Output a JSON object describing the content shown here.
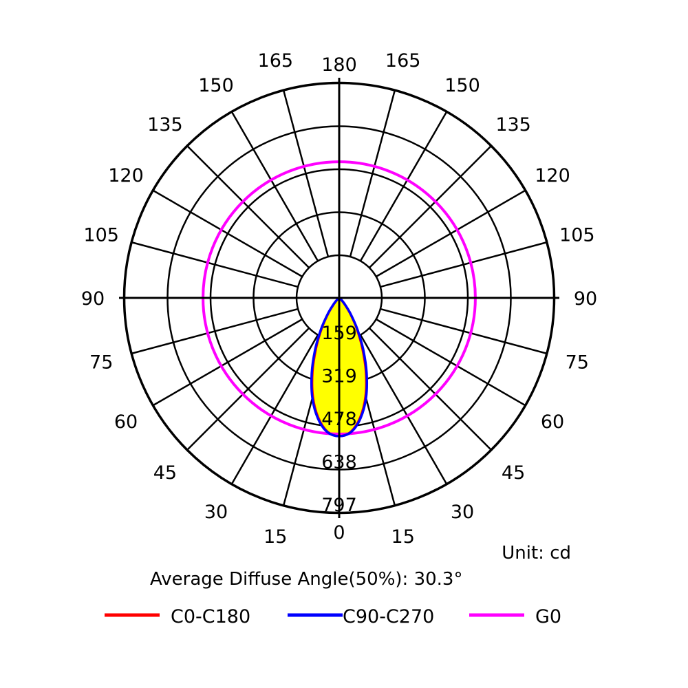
{
  "chart_data": {
    "type": "polar",
    "unit_label": "Unit: cd",
    "diffuse_angle_label": "Average Diffuse Angle(50%): 30.3°",
    "radial_ticks": [
      "159",
      "319",
      "478",
      "638",
      "797"
    ],
    "radial_values": [
      159,
      319,
      478,
      638,
      797
    ],
    "angle_labels_left": [
      "0",
      "15",
      "30",
      "45",
      "60",
      "75",
      "90",
      "105",
      "120",
      "135",
      "150",
      "165",
      "180"
    ],
    "angle_labels_right": [
      "0",
      "15",
      "30",
      "45",
      "60",
      "75",
      "90",
      "105",
      "120",
      "135",
      "150",
      "165",
      "180"
    ],
    "max_intensity": 797,
    "series": [
      {
        "name": "C0-C180",
        "color": "#ff0000",
        "gamma": [
          0,
          5,
          10,
          15,
          20,
          25,
          30,
          35,
          40,
          45,
          50,
          60,
          90
        ],
        "intensity": [
          638,
          620,
          560,
          470,
          360,
          250,
          160,
          90,
          45,
          20,
          8,
          2,
          0
        ],
        "fill": "#ffff00"
      },
      {
        "name": "C90-C270",
        "color": "#0000ff",
        "gamma": [
          0,
          5,
          10,
          15,
          20,
          25,
          30,
          35,
          40,
          45,
          50,
          60,
          90
        ],
        "intensity": [
          638,
          622,
          565,
          478,
          370,
          262,
          168,
          95,
          48,
          22,
          9,
          2,
          0
        ],
        "fill": "#ffff00"
      },
      {
        "name": "G0",
        "color": "#ff00ff",
        "constant": 638
      }
    ],
    "legend_position": "bottom"
  }
}
